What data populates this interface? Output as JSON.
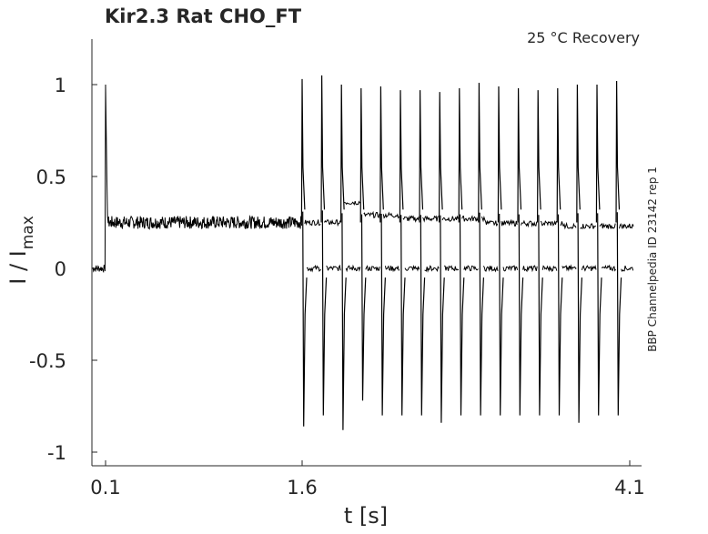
{
  "chart_data": {
    "type": "line",
    "title": "Kir2.3  Rat  CHO_FT",
    "subtitle": "25 °C  Recovery",
    "side_label": "BBP Channelpedia ID 23142 rep 1",
    "xlabel": "t [s]",
    "ylabel_main": "I / I",
    "ylabel_sub": "max",
    "x_ticks": [
      {
        "value": 0.1,
        "label": "0.1"
      },
      {
        "value": 1.6,
        "label": "1.6"
      },
      {
        "value": 4.1,
        "label": "4.1"
      }
    ],
    "y_ticks": [
      {
        "value": 1,
        "label": "1"
      },
      {
        "value": 0.5,
        "label": "0.5"
      },
      {
        "value": 0,
        "label": "0"
      },
      {
        "value": -0.5,
        "label": "-0.5"
      },
      {
        "value": -1,
        "label": "-1"
      }
    ],
    "xlim": [
      0.0,
      4.2
    ],
    "ylim": [
      -1.08,
      1.25
    ],
    "grid": false,
    "legend": "none",
    "line_color": "#000000",
    "series": [
      {
        "values_description_free": true,
        "baseline_before_pulse": 0.0,
        "pulse_start": 0.1,
        "pulse_peak": 1.0,
        "plateau_level": 0.25,
        "plateau_end": 1.6,
        "recovery_spike_times": [
          1.6,
          1.75,
          1.9,
          2.05,
          2.2,
          2.35,
          2.5,
          2.65,
          2.8,
          2.95,
          3.1,
          3.25,
          3.4,
          3.55,
          3.7,
          3.85,
          4.0
        ],
        "recovery_spike_peaks": [
          1.03,
          1.05,
          1.0,
          0.98,
          0.99,
          0.97,
          0.97,
          0.96,
          0.98,
          1.01,
          0.99,
          0.98,
          0.97,
          0.98,
          1.0,
          1.0,
          1.02
        ],
        "recovery_trough_values": [
          -0.86,
          -0.8,
          -0.88,
          -0.72,
          -0.8,
          -0.8,
          -0.8,
          -0.84,
          -0.8,
          -0.8,
          -0.8,
          -0.8,
          -0.8,
          -0.8,
          -0.84,
          -0.8,
          -0.8
        ],
        "upper_trace_level": 0.25,
        "lower_trace_level": 0.0
      }
    ]
  }
}
